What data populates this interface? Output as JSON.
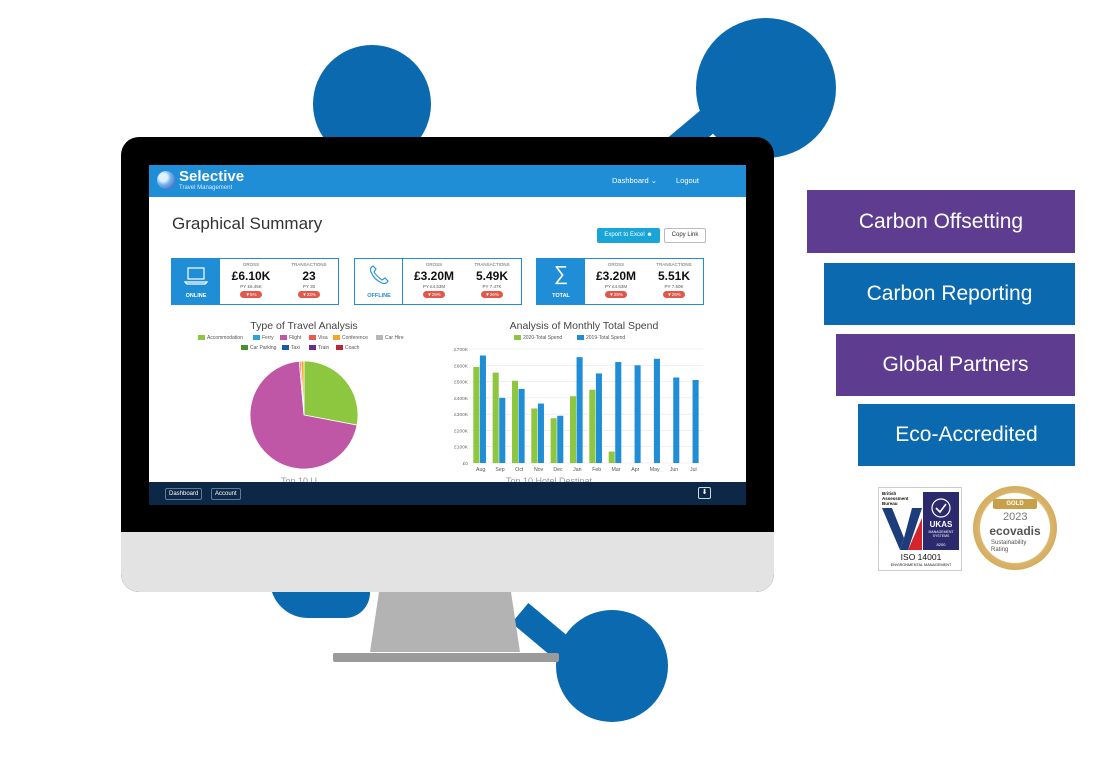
{
  "app": {
    "brand": "Selective",
    "brand_sub": "Travel Management"
  },
  "nav": {
    "dashboard": "Dashboard",
    "logout": "Logout"
  },
  "page": {
    "title": "Graphical Summary",
    "export_label": "Export to Excel",
    "copy_label": "Copy Link"
  },
  "cards": [
    {
      "label": "ONLINE",
      "icon": "laptop-icon",
      "gross_head": "GROSS",
      "gross": "£6.10K",
      "gross_py": "PY £6.45K",
      "gross_change": "▼5%",
      "tx_head": "TRANSACTIONS",
      "tx": "23",
      "tx_py": "PY 30",
      "tx_change": "▼23%"
    },
    {
      "label": "OFFLINE",
      "icon": "phone-icon",
      "gross_head": "GROSS",
      "gross": "£3.20M",
      "gross_py": "PY £4.53M",
      "gross_change": "▼29%",
      "tx_head": "TRANSACTIONS",
      "tx": "5.49K",
      "tx_py": "PY 7.47K",
      "tx_change": "▼26%"
    },
    {
      "label": "TOTAL",
      "icon": "sigma-icon",
      "gross_head": "GROSS",
      "gross": "£3.20M",
      "gross_py": "PY £4.53M",
      "gross_change": "▼29%",
      "tx_head": "TRANSACTIONS",
      "tx": "5.51K",
      "tx_py": "PY 7.50K",
      "tx_change": "▼26%"
    }
  ],
  "chart_data": [
    {
      "type": "pie",
      "title": "Type of Travel Analysis",
      "categories": [
        "Accommodation",
        "Ferry",
        "Flight",
        "Visa",
        "Conference",
        "Car Hire",
        "Car Parking",
        "Taxi",
        "Train",
        "Coach"
      ],
      "values": [
        28,
        0,
        70.6,
        0.5,
        0.9,
        0,
        0,
        0,
        0,
        0
      ],
      "colors": [
        "#8dc63f",
        "#29a3e0",
        "#c056a6",
        "#e95c4b",
        "#f6a623",
        "#b7b7b7",
        "#4b8f2f",
        "#1b5aa6",
        "#6b2d83",
        "#c0243a"
      ]
    },
    {
      "type": "bar",
      "title": "Analysis of Monthly Total Spend",
      "categories": [
        "Aug",
        "Sep",
        "Oct",
        "Nov",
        "Dec",
        "Jan",
        "Feb",
        "Mar",
        "Apr",
        "May",
        "Jun",
        "Jul"
      ],
      "series": [
        {
          "name": "2020-Total Spend",
          "color": "#8dc63f",
          "values": [
            590,
            555,
            505,
            335,
            275,
            410,
            450,
            70,
            0,
            0,
            0,
            0
          ]
        },
        {
          "name": "2019-Total Spend",
          "color": "#1f8ed6",
          "values": [
            660,
            400,
            455,
            365,
            290,
            650,
            550,
            620,
            600,
            640,
            525,
            510
          ]
        }
      ],
      "ylim": [
        0,
        700
      ],
      "yticks": [
        "£0",
        "£100K",
        "£200K",
        "£300K",
        "£400K",
        "£500K",
        "£600K",
        "£700K"
      ]
    }
  ],
  "bottom": {
    "dashboard": "Dashboard",
    "account": "Account"
  },
  "peek": {
    "left": "Top 10 U...",
    "right": "Top 10 Hotel Destinat..."
  },
  "tags": [
    {
      "label": "Carbon Offsetting",
      "color": "#5e3d91"
    },
    {
      "label": "Carbon Reporting",
      "color": "#0b6aaf"
    },
    {
      "label": "Global Partners",
      "color": "#5e3d91"
    },
    {
      "label": "Eco-Accredited",
      "color": "#0b6aaf"
    }
  ],
  "cert": {
    "line1": "British",
    "line2": "Assessment",
    "line3": "Bureau",
    "ukas": "UKAS",
    "ukas_sub": "MANAGEMENT SYSTEMS",
    "ukas_num": "8200",
    "iso": "ISO 14001",
    "iso_sub": "ENVIRONMENTAL MANAGEMENT"
  },
  "ecovadis": {
    "gold": "GOLD",
    "year": "2023",
    "brand": "ecovadis",
    "sub1": "Sustainability",
    "sub2": "Rating"
  }
}
